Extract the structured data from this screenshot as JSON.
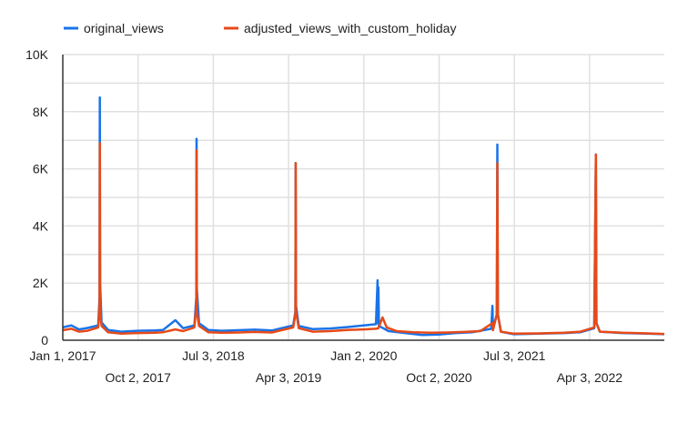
{
  "chart_data": {
    "type": "line",
    "title": "",
    "xlabel": "",
    "ylabel": "",
    "ylim": [
      0,
      10000
    ],
    "grid": true,
    "legend_position": "top-left",
    "y_ticks": [
      {
        "value": 0,
        "label": "0"
      },
      {
        "value": 2000,
        "label": "2K"
      },
      {
        "value": 4000,
        "label": "4K"
      },
      {
        "value": 6000,
        "label": "6K"
      },
      {
        "value": 8000,
        "label": "8K"
      },
      {
        "value": 10000,
        "label": "10K"
      }
    ],
    "x_range": [
      "2017-01-01",
      "2022-12-31"
    ],
    "x_ticks": [
      {
        "date": "2017-01-01",
        "label": "Jan 1, 2017",
        "row": 1
      },
      {
        "date": "2017-10-02",
        "label": "Oct 2, 2017",
        "row": 2
      },
      {
        "date": "2018-07-03",
        "label": "Jul 3, 2018",
        "row": 1
      },
      {
        "date": "2019-04-03",
        "label": "Apr 3, 2019",
        "row": 2
      },
      {
        "date": "2020-01-02",
        "label": "Jan 2, 2020",
        "row": 1
      },
      {
        "date": "2020-10-02",
        "label": "Oct 2, 2020",
        "row": 2
      },
      {
        "date": "2021-07-03",
        "label": "Jul 3, 2021",
        "row": 1
      },
      {
        "date": "2022-04-03",
        "label": "Apr 3, 2022",
        "row": 2
      }
    ],
    "series": [
      {
        "name": "original_views",
        "color": "#1a73e8",
        "points": [
          [
            "2017-01-01",
            450
          ],
          [
            "2017-02-01",
            520
          ],
          [
            "2017-03-01",
            380
          ],
          [
            "2017-04-01",
            430
          ],
          [
            "2017-05-10",
            520
          ],
          [
            "2017-05-15",
            1500
          ],
          [
            "2017-05-16",
            8500
          ],
          [
            "2017-05-17",
            2000
          ],
          [
            "2017-05-22",
            620
          ],
          [
            "2017-06-15",
            360
          ],
          [
            "2017-08-01",
            300
          ],
          [
            "2017-10-01",
            330
          ],
          [
            "2017-12-01",
            340
          ],
          [
            "2018-01-01",
            360
          ],
          [
            "2018-02-15",
            700
          ],
          [
            "2018-03-15",
            420
          ],
          [
            "2018-04-25",
            520
          ],
          [
            "2018-05-02",
            1500
          ],
          [
            "2018-05-03",
            7050
          ],
          [
            "2018-05-04",
            1800
          ],
          [
            "2018-05-12",
            600
          ],
          [
            "2018-06-15",
            360
          ],
          [
            "2018-08-01",
            330
          ],
          [
            "2018-10-01",
            350
          ],
          [
            "2018-12-01",
            370
          ],
          [
            "2019-02-01",
            340
          ],
          [
            "2019-04-20",
            520
          ],
          [
            "2019-04-28",
            1000
          ],
          [
            "2019-04-29",
            6200
          ],
          [
            "2019-04-30",
            1200
          ],
          [
            "2019-05-10",
            500
          ],
          [
            "2019-07-01",
            390
          ],
          [
            "2019-09-01",
            410
          ],
          [
            "2019-11-01",
            460
          ],
          [
            "2020-01-01",
            520
          ],
          [
            "2020-02-15",
            560
          ],
          [
            "2020-02-21",
            2100
          ],
          [
            "2020-02-22",
            600
          ],
          [
            "2020-02-24",
            1850
          ],
          [
            "2020-02-26",
            500
          ],
          [
            "2020-04-01",
            320
          ],
          [
            "2020-06-01",
            250
          ],
          [
            "2020-08-01",
            180
          ],
          [
            "2020-10-01",
            200
          ],
          [
            "2020-12-01",
            250
          ],
          [
            "2021-02-01",
            280
          ],
          [
            "2021-04-10",
            400
          ],
          [
            "2021-04-14",
            1200
          ],
          [
            "2021-04-16",
            400
          ],
          [
            "2021-04-30",
            900
          ],
          [
            "2021-05-02",
            6850
          ],
          [
            "2021-05-04",
            900
          ],
          [
            "2021-05-15",
            300
          ],
          [
            "2021-07-01",
            210
          ],
          [
            "2021-10-01",
            230
          ],
          [
            "2022-01-01",
            250
          ],
          [
            "2022-03-01",
            280
          ],
          [
            "2022-04-20",
            420
          ],
          [
            "2022-04-26",
            6500
          ],
          [
            "2022-04-28",
            600
          ],
          [
            "2022-05-10",
            300
          ],
          [
            "2022-08-01",
            250
          ],
          [
            "2022-11-01",
            230
          ],
          [
            "2022-12-31",
            210
          ]
        ]
      },
      {
        "name": "adjusted_views_with_custom_holiday",
        "color": "#e64a19",
        "points": [
          [
            "2017-01-01",
            350
          ],
          [
            "2017-02-01",
            400
          ],
          [
            "2017-03-01",
            300
          ],
          [
            "2017-04-01",
            330
          ],
          [
            "2017-05-10",
            450
          ],
          [
            "2017-05-15",
            1200
          ],
          [
            "2017-05-16",
            6900
          ],
          [
            "2017-05-17",
            1000
          ],
          [
            "2017-05-22",
            500
          ],
          [
            "2017-06-15",
            280
          ],
          [
            "2017-08-01",
            230
          ],
          [
            "2017-10-01",
            250
          ],
          [
            "2017-12-01",
            260
          ],
          [
            "2018-01-01",
            280
          ],
          [
            "2018-02-15",
            380
          ],
          [
            "2018-03-15",
            320
          ],
          [
            "2018-04-25",
            450
          ],
          [
            "2018-05-02",
            1200
          ],
          [
            "2018-05-03",
            6650
          ],
          [
            "2018-05-04",
            1000
          ],
          [
            "2018-05-12",
            500
          ],
          [
            "2018-06-15",
            280
          ],
          [
            "2018-08-01",
            260
          ],
          [
            "2018-10-01",
            270
          ],
          [
            "2018-12-01",
            290
          ],
          [
            "2019-02-01",
            270
          ],
          [
            "2019-04-20",
            450
          ],
          [
            "2019-04-28",
            900
          ],
          [
            "2019-04-29",
            6200
          ],
          [
            "2019-04-30",
            1000
          ],
          [
            "2019-05-10",
            420
          ],
          [
            "2019-07-01",
            300
          ],
          [
            "2019-09-01",
            320
          ],
          [
            "2019-11-01",
            360
          ],
          [
            "2020-01-01",
            380
          ],
          [
            "2020-02-15",
            400
          ],
          [
            "2020-02-24",
            420
          ],
          [
            "2020-03-10",
            800
          ],
          [
            "2020-03-25",
            450
          ],
          [
            "2020-05-01",
            320
          ],
          [
            "2020-07-01",
            280
          ],
          [
            "2020-09-01",
            260
          ],
          [
            "2020-11-01",
            270
          ],
          [
            "2021-01-01",
            290
          ],
          [
            "2021-03-01",
            320
          ],
          [
            "2021-04-14",
            600
          ],
          [
            "2021-04-16",
            350
          ],
          [
            "2021-04-30",
            900
          ],
          [
            "2021-05-02",
            6200
          ],
          [
            "2021-05-04",
            900
          ],
          [
            "2021-05-15",
            300
          ],
          [
            "2021-07-01",
            230
          ],
          [
            "2021-10-01",
            240
          ],
          [
            "2022-01-01",
            260
          ],
          [
            "2022-03-01",
            300
          ],
          [
            "2022-04-20",
            450
          ],
          [
            "2022-04-26",
            6500
          ],
          [
            "2022-04-28",
            600
          ],
          [
            "2022-05-10",
            300
          ],
          [
            "2022-08-01",
            260
          ],
          [
            "2022-11-01",
            240
          ],
          [
            "2022-12-31",
            220
          ]
        ]
      }
    ]
  }
}
